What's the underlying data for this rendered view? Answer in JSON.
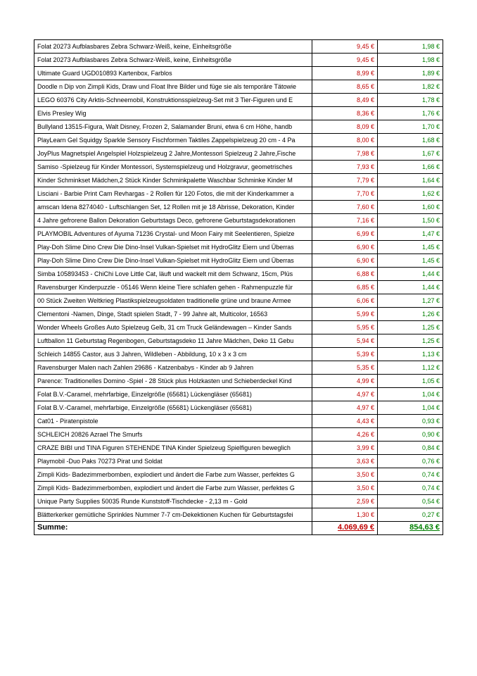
{
  "table": {
    "colors": {
      "desc": "#000000",
      "red": "#c00000",
      "green": "#008000",
      "border": "#000000",
      "background": "#ffffff"
    },
    "font_size_pt": 9,
    "sum_font_size_pt": 11,
    "columns": [
      "description",
      "amount1",
      "amount2"
    ],
    "col_widths_pct": [
      68,
      16,
      16
    ],
    "rows": [
      {
        "desc": "Folat 20273 Aufblasbares Zebra Schwarz-Weiß, keine, Einheitsgröße",
        "a": "9,45 €",
        "b": "1,98 €"
      },
      {
        "desc": "Folat 20273 Aufblasbares Zebra Schwarz-Weiß, keine, Einheitsgröße",
        "a": "9,45 €",
        "b": "1,98 €"
      },
      {
        "desc": "Ultimate Guard UGD010893 Kartenbox, Farblos",
        "a": "8,99 €",
        "b": "1,89 €"
      },
      {
        "desc": "Doodle n Dip von Zimpli Kids, Draw und Float Ihre Bilder und füge sie als temporäre Tätowie",
        "a": "8,65 €",
        "b": "1,82 €"
      },
      {
        "desc": "LEGO 60376 City Arktis-Schneemobil, Konstruktionsspielzeug-Set mit 3 Tier-Figuren und E",
        "a": "8,49 €",
        "b": "1,78 €"
      },
      {
        "desc": "Elvis Presley Wig",
        "a": "8,36 €",
        "b": "1,76 €"
      },
      {
        "desc": "Bullyland 13515-Figura, Walt Disney, Frozen 2, Salamander Bruni, etwa 6 cm Höhe, handb",
        "a": "8,09 €",
        "b": "1,70 €"
      },
      {
        "desc": "PlayLearn Gel Squidgy Sparkle Sensory Fischformen Taktiles Zappelspielzeug 20 cm - 4 Pa",
        "a": "8,00 €",
        "b": "1,68 €"
      },
      {
        "desc": "JoyPlus Magnetspiel Angelspiel Holzspielzeug 2 Jahre,Montessori Spielzeug 2 Jahre,Fische",
        "a": "7,98 €",
        "b": "1,67 €"
      },
      {
        "desc": "Samiso -Spielzeug für Kinder Montessori, Systemspielzeug und Holzgravur, geometrisches",
        "a": "7,93 €",
        "b": "1,66 €"
      },
      {
        "desc": "Kinder Schminkset Mädchen,2 Stück Kinder Schminkpalette Waschbar Schminke Kinder M",
        "a": "7,79 €",
        "b": "1,64 €"
      },
      {
        "desc": "Lisciani - Barbie Print Cam Revhargas - 2 Rollen für 120 Fotos, die mit der Kinderkammer a",
        "a": "7,70 €",
        "b": "1,62 €"
      },
      {
        "desc": "amscan Idena 8274040 - Luftschlangen Set, 12 Rollen mit je 18 Abrisse, Dekoration, Kinder",
        "a": "7,60 €",
        "b": "1,60 €"
      },
      {
        "desc": "4 Jahre gefrorene Ballon Dekoration Geburtstags Deco, gefrorene Geburtstagsdekorationen",
        "a": "7,16 €",
        "b": "1,50 €"
      },
      {
        "desc": "PLAYMOBIL Adventures of Ayuma 71236 Crystal- und Moon Fairy mit Seelentieren, Spielze",
        "a": "6,99 €",
        "b": "1,47 €"
      },
      {
        "desc": "Play-Doh Slime Dino Crew Die Dino-Insel Vulkan-Spielset mit HydroGlitz Eiern und Überras",
        "a": "6,90 €",
        "b": "1,45 €"
      },
      {
        "desc": "Play-Doh Slime Dino Crew Die Dino-Insel Vulkan-Spielset mit HydroGlitz Eiern und Überras",
        "a": "6,90 €",
        "b": "1,45 €"
      },
      {
        "desc": "Simba 105893453 - ChiChi Love Little Cat, läuft und wackelt mit dem Schwanz, 15cm, Plüs",
        "a": "6,88 €",
        "b": "1,44 €"
      },
      {
        "desc": "Ravensburger Kinderpuzzle - 05146 Wenn kleine Tiere schlafen gehen - Rahmenpuzzle für",
        "a": "6,85 €",
        "b": "1,44 €"
      },
      {
        "desc": "00 Stück Zweiten Weltkrieg Plastikspielzeugsoldaten traditionelle grüne und braune Armee",
        "a": "6,06 €",
        "b": "1,27 €"
      },
      {
        "desc": "Clementoni -Namen, Dinge, Stadt spielen Stadt, 7 - 99 Jahre alt, Multicolor, 16563",
        "a": "5,99 €",
        "b": "1,26 €"
      },
      {
        "desc": "Wonder Wheels Großes Auto Spielzeug Gelb, 31 cm Truck Geländewagen – Kinder Sands",
        "a": "5,95 €",
        "b": "1,25 €"
      },
      {
        "desc": "Luftballon 11 Geburtstag Regenbogen, Geburtstagsdeko 11 Jahre Mädchen, Deko 11 Gebu",
        "a": "5,94 €",
        "b": "1,25 €"
      },
      {
        "desc": "Schleich 14855 Castor, aus 3 Jahren, Wildleben - Abbildung, 10 x 3 x 3 cm",
        "a": "5,39 €",
        "b": "1,13 €"
      },
      {
        "desc": "Ravensburger Malen nach Zahlen 29686 - Katzenbabys - Kinder ab 9 Jahren",
        "a": "5,35 €",
        "b": "1,12 €"
      },
      {
        "desc": "Parence: Traditionelles Domino -Spiel - 28 Stück plus Holzkasten und Schieberdeckel Kind",
        "a": "4,99 €",
        "b": "1,05 €"
      },
      {
        "desc": "Folat B.V.-Caramel, mehrfarbige, Einzelgröße (65681) Lückengläser (65681)",
        "a": "4,97 €",
        "b": "1,04 €"
      },
      {
        "desc": "Folat B.V.-Caramel, mehrfarbige, Einzelgröße (65681) Lückengläser (65681)",
        "a": "4,97 €",
        "b": "1,04 €"
      },
      {
        "desc": "Cat01 - Piratenpistole",
        "a": "4,43 €",
        "b": "0,93 €"
      },
      {
        "desc": "SCHLEICH 20826 Azrael The Smurfs",
        "a": "4,26 €",
        "b": "0,90 €"
      },
      {
        "desc": "CRAZE BIBI und TINA Figuren STEHENDE TINA Kinder Spielzeug Spielfiguren beweglich",
        "a": "3,99 €",
        "b": "0,84 €"
      },
      {
        "desc": "Playmobil -Duo Paks 70273 Pirat und Soldat",
        "a": "3,63 €",
        "b": "0,76 €"
      },
      {
        "desc": "Zimpli Kids- Badezimmerbomben, explodiert und ändert die Farbe zum Wasser, perfektes G",
        "a": "3,50 €",
        "b": "0,74 €"
      },
      {
        "desc": "Zimpli Kids- Badezimmerbomben, explodiert und ändert die Farbe zum Wasser, perfektes G",
        "a": "3,50 €",
        "b": "0,74 €"
      },
      {
        "desc": "Unique Party Supplies 50035 Runde Kunststoff-Tischdecke - 2,13 m - Gold",
        "a": "2,59 €",
        "b": "0,54 €"
      },
      {
        "desc": "Blätterkerker gemütliche Sprinkles Nummer 7-7 cm-Dekektionen Kuchen für Geburtstagsfei",
        "a": "1,30 €",
        "b": "0,27 €"
      }
    ],
    "sum": {
      "label": "Summe:",
      "a": "4.069,69 €",
      "b": "854,63 €"
    }
  }
}
